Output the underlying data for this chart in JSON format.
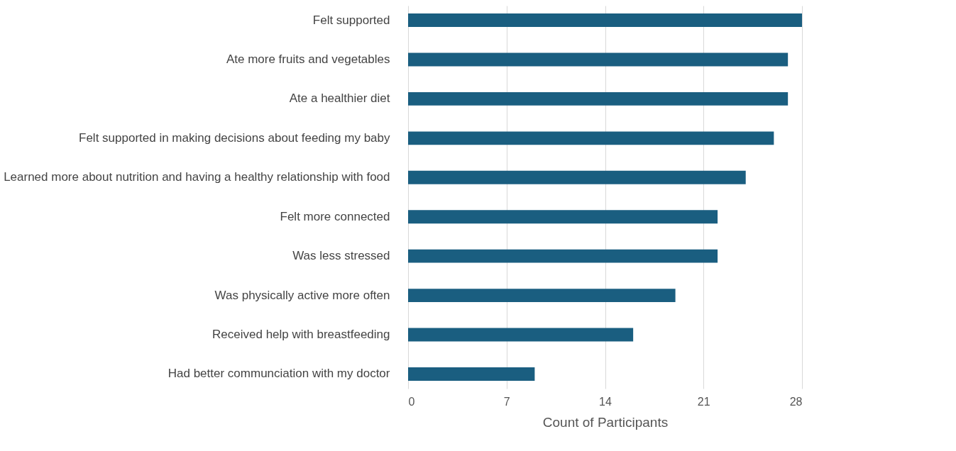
{
  "chart_data": {
    "type": "bar",
    "orientation": "horizontal",
    "xlabel": "Count of Participants",
    "categories": [
      "Felt supported",
      "Ate more fruits and vegetables",
      "Ate a healthier diet",
      "Felt supported in making decisions about feeding my baby",
      "Learned more about nutrition and having a healthy relationship with food",
      "Felt more connected",
      "Was less stressed",
      "Was physically active more often",
      "Received help with breastfeeding",
      "Had better communciation with my doctor"
    ],
    "values": [
      28,
      27,
      27,
      26,
      24,
      22,
      22,
      19,
      16,
      9
    ],
    "color": "#1a5e80",
    "xlim": [
      0,
      28
    ],
    "xticks": [
      0,
      7,
      14,
      21,
      28
    ],
    "grid": "x"
  }
}
